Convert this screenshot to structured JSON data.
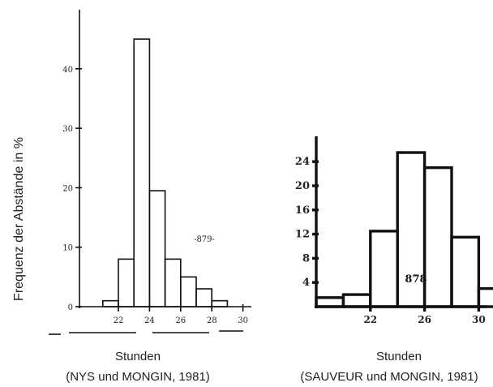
{
  "ylabel": "Frequenz der Abstände in %",
  "chart_data": [
    {
      "type": "bar",
      "xlabel": "Stunden",
      "source": "(NYS und MONGIN, 1981)",
      "annotation": "-879-",
      "x_ticks": [
        22,
        24,
        26,
        28,
        30
      ],
      "y_ticks": [
        0,
        10,
        20,
        30,
        40
      ],
      "xlim": [
        19.5,
        30.5
      ],
      "ylim": [
        0,
        46
      ],
      "bins": [
        {
          "x0": 21,
          "x1": 22,
          "value": 1
        },
        {
          "x0": 22,
          "x1": 23,
          "value": 8
        },
        {
          "x0": 23,
          "x1": 24,
          "value": 45
        },
        {
          "x0": 24,
          "x1": 25,
          "value": 19.5
        },
        {
          "x0": 25,
          "x1": 26,
          "value": 8
        },
        {
          "x0": 26,
          "x1": 27,
          "value": 5
        },
        {
          "x0": 27,
          "x1": 28,
          "value": 3
        },
        {
          "x0": 28,
          "x1": 29,
          "value": 1
        }
      ]
    },
    {
      "type": "bar",
      "xlabel": "Stunden",
      "source": "(SAUVEUR und MONGIN, 1981)",
      "annotation": "878",
      "x_ticks": [
        22,
        26,
        30
      ],
      "y_ticks": [
        4,
        8,
        12,
        16,
        20,
        24
      ],
      "xlim": [
        18,
        31.5
      ],
      "ylim": [
        0,
        27
      ],
      "bins": [
        {
          "x0": 18,
          "x1": 20,
          "value": 1.5
        },
        {
          "x0": 20,
          "x1": 22,
          "value": 2
        },
        {
          "x0": 22,
          "x1": 24,
          "value": 12.5
        },
        {
          "x0": 24,
          "x1": 26,
          "value": 25.5
        },
        {
          "x0": 26,
          "x1": 28,
          "value": 23
        },
        {
          "x0": 28,
          "x1": 30,
          "value": 11.5
        },
        {
          "x0": 30,
          "x1": 31.5,
          "value": 3
        }
      ]
    }
  ]
}
